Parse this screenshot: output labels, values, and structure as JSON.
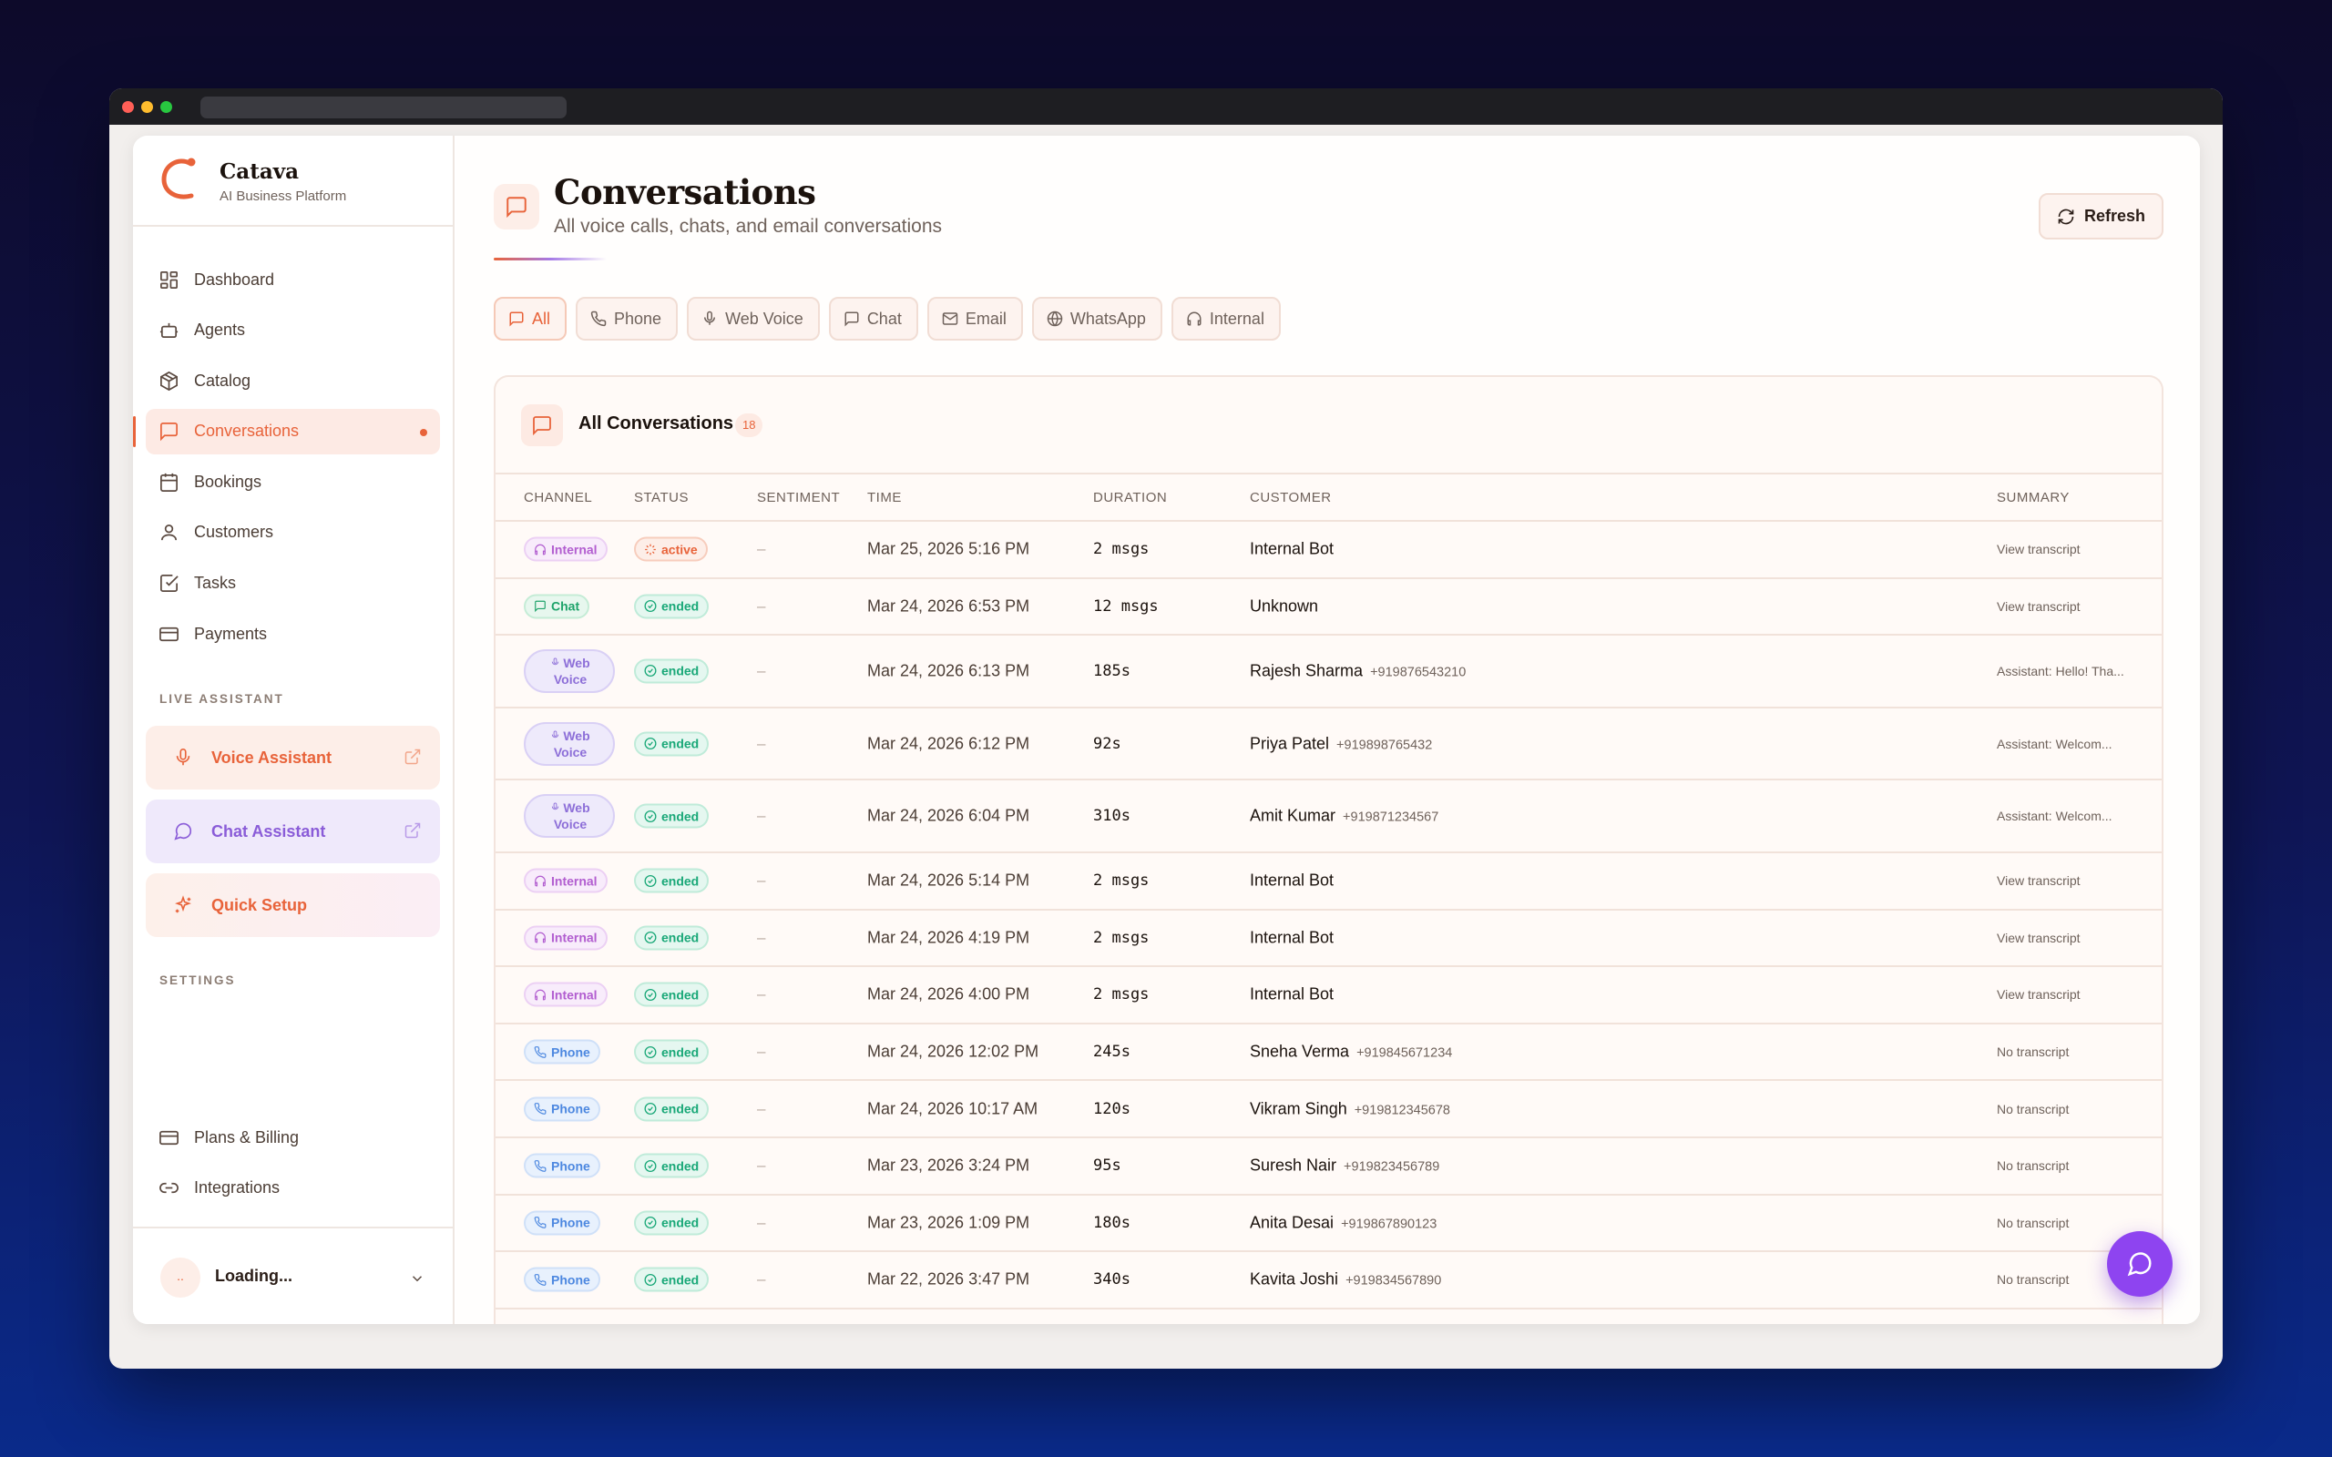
{
  "brand": {
    "name": "Catava",
    "subtitle": "AI Business Platform",
    "accent": "#e8633a"
  },
  "nav": [
    {
      "label": "Dashboard",
      "icon": "dashboard-icon"
    },
    {
      "label": "Agents",
      "icon": "bot-icon"
    },
    {
      "label": "Catalog",
      "icon": "package-icon"
    },
    {
      "label": "Conversations",
      "icon": "message-icon",
      "active": true
    },
    {
      "label": "Bookings",
      "icon": "calendar-icon"
    },
    {
      "label": "Customers",
      "icon": "user-icon"
    },
    {
      "label": "Tasks",
      "icon": "checkbox-icon"
    },
    {
      "label": "Payments",
      "icon": "card-icon"
    }
  ],
  "live_assistant": {
    "label": "LIVE ASSISTANT",
    "voice": "Voice Assistant",
    "chat": "Chat Assistant",
    "setup": "Quick Setup"
  },
  "settings": {
    "label": "SETTINGS",
    "items": [
      {
        "label": "Plans & Billing",
        "icon": "card-icon"
      },
      {
        "label": "Integrations",
        "icon": "link-icon"
      }
    ]
  },
  "user": {
    "initials": "..",
    "name": "Loading..."
  },
  "page": {
    "title": "Conversations",
    "subtitle": "All voice calls, chats, and email conversations",
    "refresh": "Refresh"
  },
  "tabs": [
    "All",
    "Phone",
    "Web Voice",
    "Chat",
    "Email",
    "WhatsApp",
    "Internal"
  ],
  "panel": {
    "title": "All Conversations",
    "count": "18"
  },
  "columns": [
    "CHANNEL",
    "STATUS",
    "SENTIMENT",
    "TIME",
    "DURATION",
    "CUSTOMER",
    "SUMMARY"
  ],
  "rows": [
    {
      "channel": "Internal",
      "status": "active",
      "sentiment": "–",
      "time": "Mar 25, 2026 5:16 PM",
      "duration": "2 msgs",
      "customer": "Internal Bot",
      "phone": "",
      "summary": "View transcript"
    },
    {
      "channel": "Chat",
      "status": "ended",
      "sentiment": "–",
      "time": "Mar 24, 2026 6:53 PM",
      "duration": "12 msgs",
      "customer": "Unknown",
      "phone": "",
      "summary": "View transcript"
    },
    {
      "channel": "Web Voice",
      "status": "ended",
      "sentiment": "–",
      "time": "Mar 24, 2026 6:13 PM",
      "duration": "185s",
      "customer": "Rajesh Sharma",
      "phone": "+919876543210",
      "summary": "Assistant: Hello! Tha..."
    },
    {
      "channel": "Web Voice",
      "status": "ended",
      "sentiment": "–",
      "time": "Mar 24, 2026 6:12 PM",
      "duration": "92s",
      "customer": "Priya Patel",
      "phone": "+919898765432",
      "summary": "Assistant: Welcom..."
    },
    {
      "channel": "Web Voice",
      "status": "ended",
      "sentiment": "–",
      "time": "Mar 24, 2026 6:04 PM",
      "duration": "310s",
      "customer": "Amit Kumar",
      "phone": "+919871234567",
      "summary": "Assistant: Welcom..."
    },
    {
      "channel": "Internal",
      "status": "ended",
      "sentiment": "–",
      "time": "Mar 24, 2026 5:14 PM",
      "duration": "2 msgs",
      "customer": "Internal Bot",
      "phone": "",
      "summary": "View transcript"
    },
    {
      "channel": "Internal",
      "status": "ended",
      "sentiment": "–",
      "time": "Mar 24, 2026 4:19 PM",
      "duration": "2 msgs",
      "customer": "Internal Bot",
      "phone": "",
      "summary": "View transcript"
    },
    {
      "channel": "Internal",
      "status": "ended",
      "sentiment": "–",
      "time": "Mar 24, 2026 4:00 PM",
      "duration": "2 msgs",
      "customer": "Internal Bot",
      "phone": "",
      "summary": "View transcript"
    },
    {
      "channel": "Phone",
      "status": "ended",
      "sentiment": "–",
      "time": "Mar 24, 2026 12:02 PM",
      "duration": "245s",
      "customer": "Sneha Verma",
      "phone": "+919845671234",
      "summary": "No transcript"
    },
    {
      "channel": "Phone",
      "status": "ended",
      "sentiment": "–",
      "time": "Mar 24, 2026 10:17 AM",
      "duration": "120s",
      "customer": "Vikram Singh",
      "phone": "+919812345678",
      "summary": "No transcript"
    },
    {
      "channel": "Phone",
      "status": "ended",
      "sentiment": "–",
      "time": "Mar 23, 2026 3:24 PM",
      "duration": "95s",
      "customer": "Suresh Nair",
      "phone": "+919823456789",
      "summary": "No transcript"
    },
    {
      "channel": "Phone",
      "status": "ended",
      "sentiment": "–",
      "time": "Mar 23, 2026 1:09 PM",
      "duration": "180s",
      "customer": "Anita Desai",
      "phone": "+919867890123",
      "summary": "No transcript"
    },
    {
      "channel": "Phone",
      "status": "ended",
      "sentiment": "–",
      "time": "Mar 22, 2026 3:47 PM",
      "duration": "340s",
      "customer": "Kavita Joshi",
      "phone": "+919834567890",
      "summary": "No transcript"
    }
  ]
}
